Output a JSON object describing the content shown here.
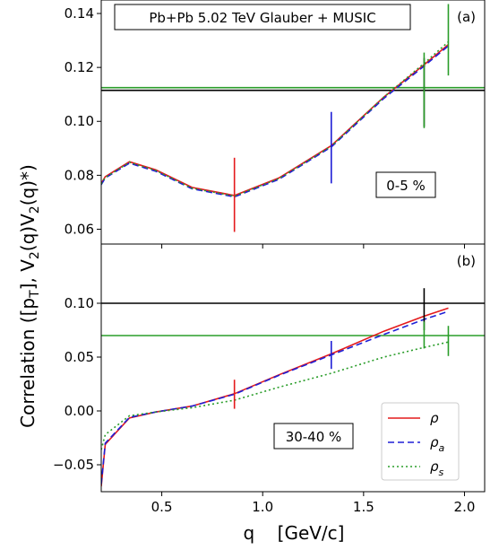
{
  "figure": {
    "ylabel": "Correlation   ([p_T], V_2(q)V_2(q)*)",
    "xlabel": "q    [GeV/c]"
  },
  "chart_data": [
    {
      "type": "line",
      "panel": "(a)",
      "title": "Pb+Pb   5.02 TeV  Glauber + MUSIC",
      "centrality": "0-5 %",
      "xlim": [
        0.2,
        2.1
      ],
      "ylim": [
        0.0545,
        0.145
      ],
      "x_ticks": [
        "0.5",
        "1.0",
        "1.5",
        "2.0"
      ],
      "y_ticks": [
        "0.06",
        "0.08",
        "0.10",
        "0.12",
        "0.14"
      ],
      "y_tick_values": [
        0.06,
        0.08,
        0.1,
        0.12,
        0.14
      ],
      "x": [
        0.2,
        0.22,
        0.34,
        0.47,
        0.65,
        0.86,
        1.08,
        1.34,
        1.6,
        1.8,
        1.92
      ],
      "series": [
        {
          "name": "ρ",
          "color": "#e41a1c",
          "style": "solid",
          "values": [
            0.077,
            0.0795,
            0.085,
            0.082,
            0.0755,
            0.0725,
            0.079,
            0.091,
            0.109,
            0.121,
            0.1285
          ]
        },
        {
          "name": "ρ_a",
          "color": "#1f1fd6",
          "style": "dashed",
          "values": [
            0.0765,
            0.079,
            0.0845,
            0.0815,
            0.075,
            0.072,
            0.0785,
            0.0905,
            0.1085,
            0.1205,
            0.128
          ]
        },
        {
          "name": "ρ_s",
          "color": "#2a9d2a",
          "style": "dotted",
          "values": [
            0.0768,
            0.0792,
            0.0848,
            0.0818,
            0.0752,
            0.0723,
            0.0788,
            0.0908,
            0.109,
            0.1215,
            0.1295
          ]
        }
      ],
      "hlines": [
        {
          "color": "#000000",
          "value": 0.1115
        },
        {
          "color": "#2a9d2a",
          "value": 0.1125
        }
      ],
      "error_bars": [
        {
          "color": "#e41a1c",
          "x": 0.86,
          "ylow": 0.059,
          "yhigh": 0.0865
        },
        {
          "color": "#1f1fd6",
          "x": 1.34,
          "ylow": 0.077,
          "yhigh": 0.1035
        },
        {
          "color": "#000000",
          "x": 1.8,
          "ylow": 0.098,
          "yhigh": 0.1235
        },
        {
          "color": "#2a9d2a",
          "x": 1.8,
          "ylow": 0.0975,
          "yhigh": 0.1255
        },
        {
          "color": "#2a9d2a",
          "x": 1.92,
          "ylow": 0.117,
          "yhigh": 0.1435
        }
      ]
    },
    {
      "type": "line",
      "panel": "(b)",
      "centrality": "30-40 %",
      "xlim": [
        0.2,
        2.1
      ],
      "ylim": [
        -0.075,
        0.155
      ],
      "x_ticks": [
        "0.5",
        "1.0",
        "1.5",
        "2.0"
      ],
      "y_ticks": [
        "−0.05",
        "0.00",
        "0.05",
        "0.10"
      ],
      "y_tick_values": [
        -0.05,
        0.0,
        0.05,
        0.1
      ],
      "x": [
        0.2,
        0.22,
        0.34,
        0.47,
        0.65,
        0.86,
        1.08,
        1.34,
        1.6,
        1.8,
        1.92
      ],
      "series": [
        {
          "name": "ρ",
          "color": "#e41a1c",
          "style": "solid",
          "values": [
            -0.07,
            -0.031,
            -0.0065,
            -0.001,
            0.0045,
            0.016,
            0.0335,
            0.053,
            0.074,
            0.088,
            0.0955
          ]
        },
        {
          "name": "ρ_a",
          "color": "#1f1fd6",
          "style": "dashed",
          "values": [
            -0.068,
            -0.03,
            -0.006,
            -0.001,
            0.0045,
            0.0155,
            0.033,
            0.052,
            0.071,
            0.085,
            0.0925
          ]
        },
        {
          "name": "ρ_s",
          "color": "#2a9d2a",
          "style": "dotted",
          "values": [
            -0.036,
            -0.022,
            -0.0045,
            -0.001,
            0.003,
            0.01,
            0.022,
            0.035,
            0.05,
            0.059,
            0.064
          ]
        }
      ],
      "hlines": [
        {
          "color": "#000000",
          "value": 0.1
        },
        {
          "color": "#2a9d2a",
          "value": 0.07
        }
      ],
      "error_bars": [
        {
          "color": "#e41a1c",
          "x": 0.86,
          "ylow": 0.002,
          "yhigh": 0.029
        },
        {
          "color": "#1f1fd6",
          "x": 1.34,
          "ylow": 0.039,
          "yhigh": 0.065
        },
        {
          "color": "#000000",
          "x": 1.8,
          "ylow": 0.075,
          "yhigh": 0.114
        },
        {
          "color": "#2a9d2a",
          "x": 1.8,
          "ylow": 0.058,
          "yhigh": 0.083
        },
        {
          "color": "#2a9d2a",
          "x": 1.92,
          "ylow": 0.051,
          "yhigh": 0.079
        }
      ],
      "legend": {
        "placement": "bottom-right",
        "entries": [
          {
            "label": "ρ",
            "color": "#e41a1c",
            "style": "solid"
          },
          {
            "label": "ρ_a",
            "color": "#1f1fd6",
            "style": "dashed"
          },
          {
            "label": "ρ_s",
            "color": "#2a9d2a",
            "style": "dotted"
          }
        ]
      }
    }
  ]
}
